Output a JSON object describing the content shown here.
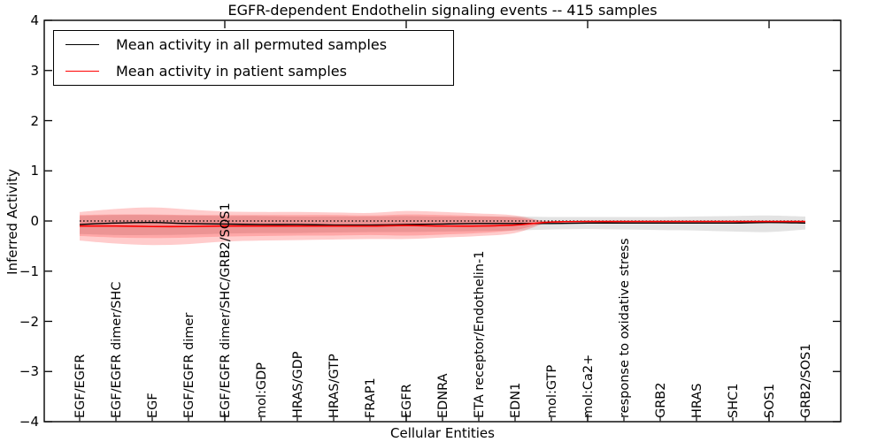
{
  "chart_data": {
    "type": "line",
    "title": "EGFR-dependent Endothelin signaling events -- 415 samples",
    "xlabel": "Cellular Entities",
    "ylabel": "Inferred Activity",
    "ylim": [
      -4,
      4
    ],
    "ytick_labels": [
      "4",
      "3",
      "2",
      "1",
      "0",
      "−1",
      "−2",
      "−3",
      "−4"
    ],
    "ytick_values": [
      4,
      3,
      2,
      1,
      0,
      -1,
      -2,
      -3,
      -4
    ],
    "grid": false,
    "legend_position": "upper left",
    "emphasis_tick_indices": [
      4,
      9,
      14,
      19
    ],
    "categories": [
      "EGF/EGFR",
      "EGF/EGFR dimer/SHC",
      "EGF",
      "EGF/EGFR dimer",
      "EGF/EGFR dimer/SHC/GRB2/SOS1",
      "mol:GDP",
      "HRAS/GDP",
      "HRAS/GTP",
      "FRAP1",
      "EGFR",
      "EDNRA",
      "ETA receptor/Endothelin-1",
      "EDN1",
      "mol:GTP",
      "mol:Ca2+",
      "response to oxidative stress",
      "GRB2",
      "HRAS",
      "SHC1",
      "SOS1",
      "GRB2/SOS1"
    ],
    "series": [
      {
        "name": "Mean activity in all permuted samples",
        "color": "#000000",
        "width": 1.4,
        "values": [
          -0.07,
          -0.04,
          -0.03,
          -0.05,
          -0.06,
          -0.07,
          -0.07,
          -0.08,
          -0.08,
          -0.07,
          -0.06,
          -0.05,
          -0.05,
          -0.05,
          -0.04,
          -0.04,
          -0.04,
          -0.04,
          -0.04,
          -0.03,
          -0.04
        ]
      },
      {
        "name": "Mean activity in patient samples",
        "color": "#ff0000",
        "width": 1.6,
        "values": [
          -0.1,
          -0.1,
          -0.11,
          -0.11,
          -0.1,
          -0.1,
          -0.1,
          -0.1,
          -0.1,
          -0.09,
          -0.1,
          -0.1,
          -0.08,
          -0.02,
          -0.01,
          -0.01,
          -0.01,
          -0.01,
          -0.01,
          -0.01,
          -0.01
        ]
      }
    ],
    "bands": [
      {
        "name": "permuted-samples-std-band",
        "color": "#000000",
        "alpha": 0.11,
        "upper": [
          0.1,
          0.12,
          0.12,
          0.11,
          0.1,
          0.1,
          0.09,
          0.09,
          0.09,
          0.1,
          0.09,
          0.09,
          0.09,
          0.08,
          0.08,
          0.08,
          0.08,
          0.09,
          0.1,
          0.11,
          0.09
        ],
        "lower": [
          -0.26,
          -0.28,
          -0.28,
          -0.27,
          -0.25,
          -0.24,
          -0.24,
          -0.23,
          -0.22,
          -0.22,
          -0.21,
          -0.2,
          -0.19,
          -0.17,
          -0.16,
          -0.17,
          -0.18,
          -0.19,
          -0.21,
          -0.22,
          -0.17
        ]
      },
      {
        "name": "patient-samples-std-band-outer",
        "color": "#ff0000",
        "alpha": 0.2,
        "upper": [
          0.18,
          0.24,
          0.27,
          0.23,
          0.19,
          0.18,
          0.18,
          0.17,
          0.16,
          0.2,
          0.18,
          0.15,
          0.11,
          -0.02,
          -0.01,
          -0.01,
          -0.01,
          -0.01,
          -0.01,
          -0.01,
          -0.01
        ],
        "lower": [
          -0.39,
          -0.45,
          -0.48,
          -0.46,
          -0.41,
          -0.39,
          -0.38,
          -0.37,
          -0.36,
          -0.36,
          -0.33,
          -0.3,
          -0.24,
          -0.02,
          -0.01,
          -0.01,
          -0.01,
          -0.01,
          -0.01,
          -0.01,
          -0.01
        ]
      },
      {
        "name": "patient-samples-std-band-inner",
        "color": "#ff0000",
        "alpha": 0.18,
        "upper": [
          0.12,
          0.13,
          0.13,
          0.12,
          0.12,
          0.12,
          0.12,
          0.12,
          0.11,
          0.13,
          0.12,
          0.1,
          0.07,
          -0.02,
          -0.01,
          -0.01,
          -0.01,
          -0.01,
          -0.01,
          -0.01,
          -0.01
        ],
        "lower": [
          -0.3,
          -0.33,
          -0.34,
          -0.33,
          -0.31,
          -0.3,
          -0.29,
          -0.29,
          -0.28,
          -0.29,
          -0.27,
          -0.24,
          -0.18,
          -0.02,
          -0.01,
          -0.01,
          -0.01,
          -0.01,
          -0.01,
          -0.01,
          -0.01
        ]
      }
    ],
    "reference_line": {
      "y": 0,
      "style": "dotted",
      "color": "#000000"
    }
  },
  "legend": {
    "entries": [
      {
        "label": "Mean activity in all permuted samples",
        "color": "#000000"
      },
      {
        "label": "Mean activity in patient samples",
        "color": "#ff0000"
      }
    ]
  }
}
